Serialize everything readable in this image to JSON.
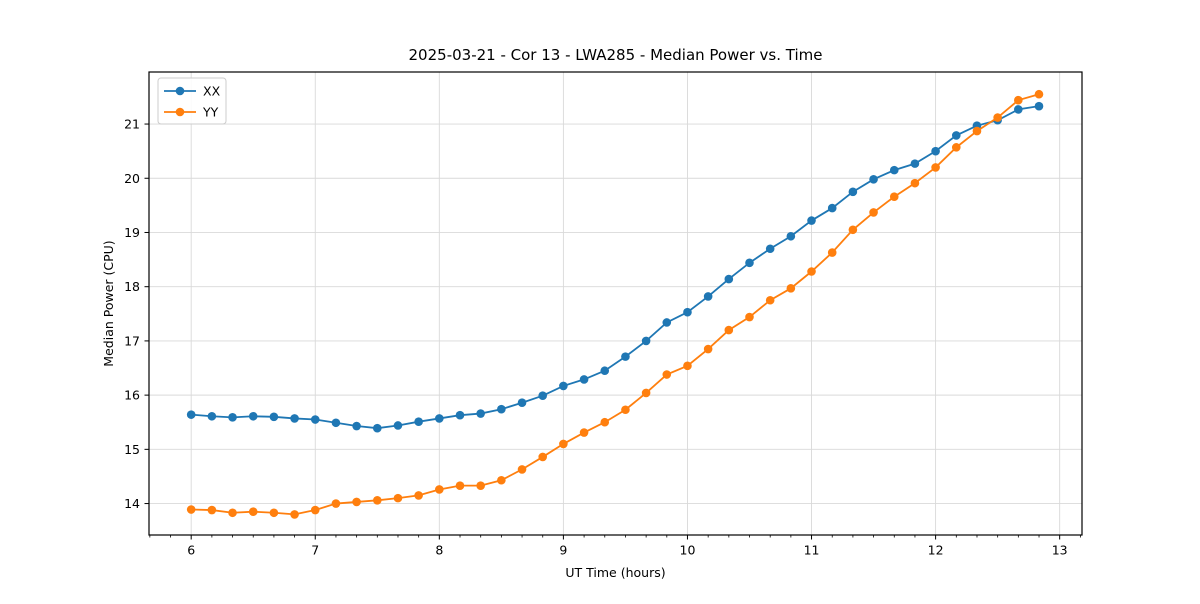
{
  "chart_data": {
    "type": "line",
    "title": "2025-03-21 - Cor 13 - LWA285 - Median Power vs. Time",
    "xlabel": "UT Time (hours)",
    "ylabel": "Median Power (CPU)",
    "xlim": [
      5.66,
      13.18
    ],
    "ylim": [
      13.42,
      21.96
    ],
    "x_ticks": [
      6,
      7,
      8,
      9,
      10,
      11,
      12,
      13
    ],
    "y_ticks": [
      14,
      15,
      16,
      17,
      18,
      19,
      20,
      21
    ],
    "x_minor_step": 0.16667,
    "grid": true,
    "legend_position": "upper-left",
    "colors": {
      "xx": "#1f77b4",
      "yy": "#ff7f0e",
      "grid": "#d9d9d9",
      "spine": "#000000"
    },
    "x": [
      6,
      6.1667,
      6.3333,
      6.5,
      6.6667,
      6.8333,
      7,
      7.1667,
      7.3333,
      7.5,
      7.6667,
      7.8333,
      8,
      8.1667,
      8.3333,
      8.5,
      8.6667,
      8.8333,
      9,
      9.1667,
      9.3333,
      9.5,
      9.6667,
      9.8333,
      10,
      10.1667,
      10.3333,
      10.5,
      10.6667,
      10.8333,
      11,
      11.1667,
      11.3333,
      11.5,
      11.6667,
      11.8333,
      12,
      12.1667,
      12.3333,
      12.5,
      12.6667,
      12.8333
    ],
    "series": [
      {
        "name": "XX",
        "color": "#1f77b4",
        "values": [
          15.64,
          15.61,
          15.59,
          15.61,
          15.6,
          15.57,
          15.55,
          15.49,
          15.43,
          15.39,
          15.44,
          15.51,
          15.57,
          15.63,
          15.66,
          15.74,
          15.86,
          15.99,
          16.17,
          16.29,
          16.45,
          16.71,
          17.0,
          17.34,
          17.53,
          17.82,
          18.14,
          18.44,
          18.7,
          18.93,
          19.22,
          19.45,
          19.75,
          19.98,
          20.15,
          20.27,
          20.5,
          20.79,
          20.97,
          21.07,
          21.27,
          21.33
        ]
      },
      {
        "name": "YY",
        "color": "#ff7f0e",
        "values": [
          13.89,
          13.88,
          13.83,
          13.85,
          13.83,
          13.8,
          13.88,
          14.0,
          14.03,
          14.06,
          14.1,
          14.15,
          14.26,
          14.33,
          14.33,
          14.43,
          14.63,
          14.86,
          15.1,
          15.31,
          15.5,
          15.73,
          16.04,
          16.38,
          16.54,
          16.85,
          17.2,
          17.44,
          17.75,
          17.97,
          18.28,
          18.63,
          19.05,
          19.37,
          19.66,
          19.91,
          20.2,
          20.57,
          20.87,
          21.12,
          21.44,
          21.55
        ]
      }
    ]
  }
}
